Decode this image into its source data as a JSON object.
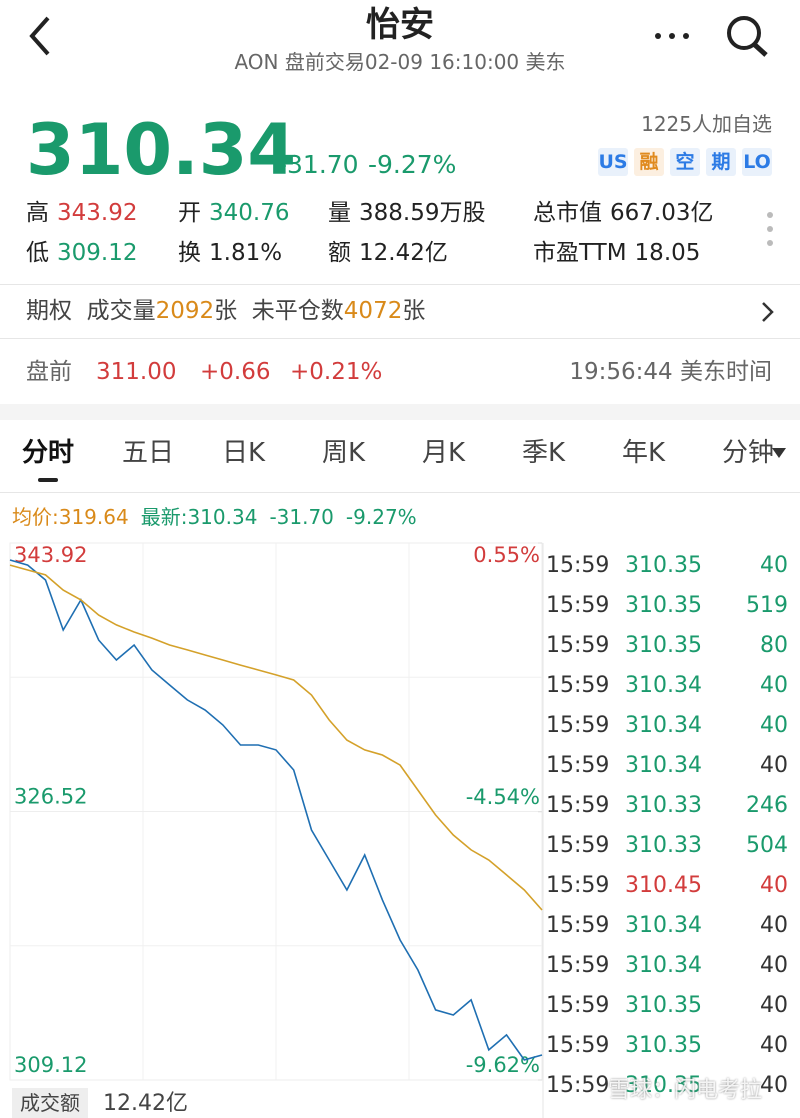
{
  "header": {
    "title": "怡安",
    "subtitle": "AON 盘前交易02-09 16:10:00 美东"
  },
  "quote": {
    "price": "310.34",
    "change": "-31.70",
    "change_pct": "-9.27%",
    "watchers": "1225人加自选",
    "tags": [
      "US",
      "融",
      "空",
      "期",
      "LO"
    ]
  },
  "stats": [
    [
      {
        "label": "高",
        "value": "343.92"
      },
      {
        "label": "开",
        "value": "340.76"
      },
      {
        "label": "量",
        "value": "388.59万股"
      },
      {
        "label": "总市值",
        "value": "667.03亿"
      }
    ],
    [
      {
        "label": "低",
        "value": "309.12"
      },
      {
        "label": "换",
        "value": "1.81%"
      },
      {
        "label": "额",
        "value": "12.42亿"
      },
      {
        "label": "市盈TTM",
        "value": "18.05"
      }
    ]
  ],
  "options": {
    "label": "期权",
    "volume_label": "成交量",
    "volume": "2092",
    "volume_unit": "张",
    "oi_label": "未平仓数",
    "oi": "4072",
    "oi_unit": "张"
  },
  "premarket": {
    "label": "盘前",
    "price": "311.00",
    "change": "+0.66",
    "change_pct": "+0.21%",
    "time": "19:56:44 美东时间"
  },
  "tabs": [
    "分时",
    "五日",
    "日K",
    "周K",
    "月K",
    "季K",
    "年K",
    "分钟"
  ],
  "legend": [
    "均价:319.64",
    "最新:310.34",
    "-31.70",
    "-9.27%"
  ],
  "chart_data": {
    "type": "line",
    "categories": [
      null,
      null,
      null,
      null,
      null,
      null,
      null,
      null,
      null,
      null,
      null,
      null,
      null,
      null,
      null,
      null,
      null,
      null,
      null,
      null,
      null,
      null,
      null,
      null,
      null,
      null,
      null,
      null,
      null,
      null,
      null
    ],
    "series": [
      {
        "color": "#1f6fb2",
        "values": [
          342.82,
          342.49,
          341.52,
          338.28,
          340.23,
          337.63,
          336.34,
          337.31,
          335.69,
          334.72,
          333.75,
          333.1,
          332.13,
          330.83,
          330.83,
          330.51,
          329.21,
          325.32,
          323.38,
          321.43,
          323.7,
          320.79,
          318.19,
          316.25,
          313.66,
          313.33,
          314.31,
          311.07,
          312.04,
          310.42,
          310.74
        ]
      },
      {
        "color": "#d4a12a",
        "values": [
          342.49,
          342.17,
          341.85,
          340.87,
          340.23,
          339.25,
          338.61,
          338.15,
          337.76,
          337.31,
          336.99,
          336.66,
          336.34,
          336.01,
          335.69,
          335.37,
          335.04,
          334.07,
          332.45,
          331.15,
          330.51,
          330.18,
          329.53,
          327.91,
          326.29,
          325.0,
          324.03,
          323.38,
          322.41,
          321.43,
          320.14
        ]
      }
    ],
    "ylim": [
      309.12,
      343.92
    ],
    "yticks": [
      343.92,
      326.52,
      309.12
    ],
    "y2lim": [
      -9.62,
      0.55
    ],
    "y2ticks": [
      {
        "value": 0.55,
        "label": "0.55%"
      },
      {
        "value": -4.54,
        "label": "-4.54%"
      },
      {
        "value": -9.62,
        "label": "-9.62%"
      }
    ]
  },
  "trades": [
    [
      "15:59",
      "310.35",
      "40"
    ],
    [
      "15:59",
      "310.35",
      "519"
    ],
    [
      "15:59",
      "310.35",
      "80"
    ],
    [
      "15:59",
      "310.34",
      "40"
    ],
    [
      "15:59",
      "310.34",
      "40"
    ],
    [
      "15:59",
      "310.34",
      "40"
    ],
    [
      "15:59",
      "310.33",
      "246"
    ],
    [
      "15:59",
      "310.33",
      "504"
    ],
    [
      "15:59",
      "310.45",
      "40"
    ],
    [
      "15:59",
      "310.34",
      "40"
    ],
    [
      "15:59",
      "310.34",
      "40"
    ],
    [
      "15:59",
      "310.35",
      "40"
    ],
    [
      "15:59",
      "310.35",
      "40"
    ],
    [
      "15:59",
      "310.35",
      "40"
    ]
  ],
  "trade_colors": [
    [
      "#1a9a6c",
      "#1a9a6c"
    ],
    [
      "#1a9a6c",
      "#1a9a6c"
    ],
    [
      "#1a9a6c",
      "#1a9a6c"
    ],
    [
      "#1a9a6c",
      "#1a9a6c"
    ],
    [
      "#1a9a6c",
      "#1a9a6c"
    ],
    [
      "#1a9a6c",
      "#333333"
    ],
    [
      "#1a9a6c",
      "#1a9a6c"
    ],
    [
      "#1a9a6c",
      "#1a9a6c"
    ],
    [
      "#d23c3c",
      "#d23c3c"
    ],
    [
      "#1a9a6c",
      "#333333"
    ],
    [
      "#1a9a6c",
      "#333333"
    ],
    [
      "#1a9a6c",
      "#333333"
    ],
    [
      "#1a9a6c",
      "#333333"
    ],
    [
      "#1a9a6c",
      "#333333"
    ]
  ],
  "footer": {
    "label": "成交额",
    "value": "12.42亿",
    "watermark": "雪球：闪电考拉"
  }
}
